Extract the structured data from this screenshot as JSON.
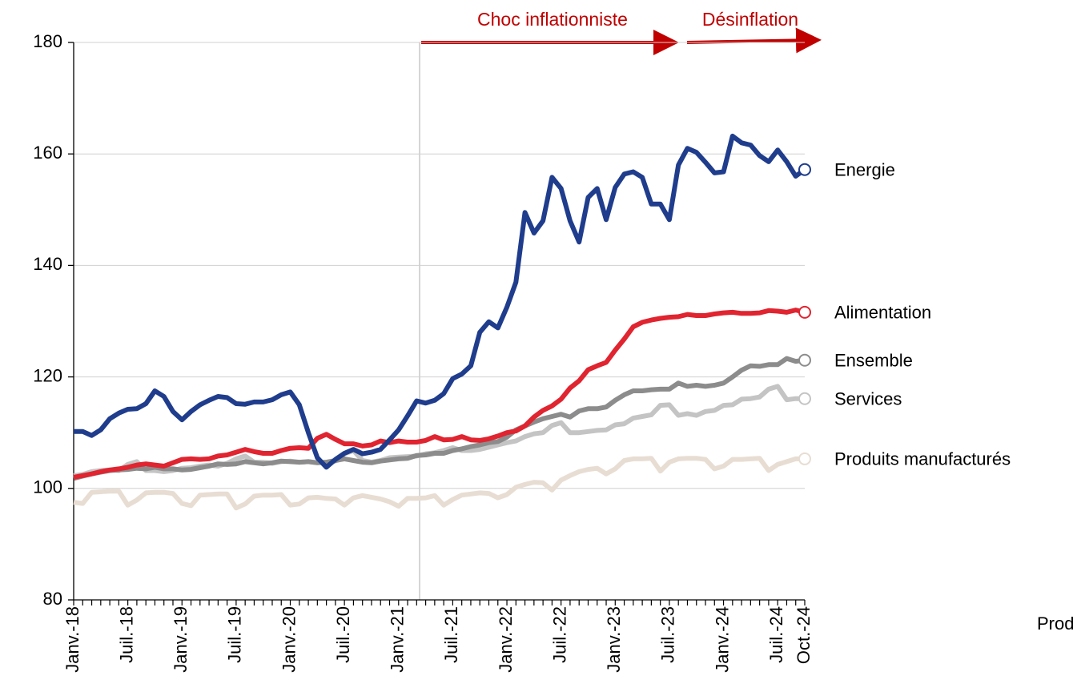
{
  "chart_data": {
    "type": "line",
    "categories": [
      "Janv.-18",
      null,
      null,
      null,
      null,
      null,
      "Juil.-18",
      null,
      null,
      null,
      null,
      null,
      "Janv.-19",
      null,
      null,
      null,
      null,
      null,
      "Juil.-19",
      null,
      null,
      null,
      null,
      null,
      "Janv.-20",
      null,
      null,
      null,
      null,
      null,
      "Juil.-20",
      null,
      null,
      null,
      null,
      null,
      "Janv.-21",
      null,
      null,
      null,
      null,
      null,
      "Juil.-21",
      null,
      null,
      null,
      null,
      null,
      "Janv.-22",
      null,
      null,
      null,
      null,
      null,
      "Juil.-22",
      null,
      null,
      null,
      null,
      null,
      "Janv.-23",
      null,
      null,
      null,
      null,
      null,
      "Juil.-23",
      null,
      null,
      null,
      null,
      null,
      "Janv.-24",
      null,
      null,
      null,
      null,
      null,
      "Juil.-24",
      null,
      null,
      "Oct.-24"
    ],
    "series": [
      {
        "name": "Energie",
        "color": "#1f3d8c",
        "values": [
          110.2,
          110.2,
          109.5,
          110.5,
          112.5,
          113.5,
          114.2,
          114.3,
          115.2,
          117.5,
          116.5,
          113.8,
          112.3,
          113.8,
          115.0,
          115.8,
          116.5,
          116.3,
          115.2,
          115.1,
          115.5,
          115.5,
          115.9,
          116.8,
          117.3,
          115.0,
          110.0,
          105.5,
          103.8,
          105.2,
          106.3,
          107.0,
          106.2,
          106.5,
          107.0,
          108.7,
          110.5,
          113.0,
          115.7,
          115.3,
          115.8,
          117.0,
          119.7,
          120.5,
          122.0,
          128.0,
          129.9,
          128.8,
          132.5,
          137.0,
          149.5,
          145.8,
          148.0,
          155.8,
          153.8,
          148.0,
          144.2,
          152.2,
          153.8,
          148.2,
          154.0,
          156.4,
          156.8,
          155.8,
          151.0,
          151.0,
          148.2,
          158.0,
          161.0,
          160.3,
          158.5,
          156.6,
          156.8,
          163.2,
          162.0,
          161.6,
          159.7,
          158.6,
          160.7,
          158.6,
          156.0,
          157.2
        ]
      },
      {
        "name": "Alimentation",
        "color": "#e02430",
        "values": [
          102.0,
          102.3,
          102.6,
          103.0,
          103.3,
          103.5,
          103.8,
          104.2,
          104.4,
          104.2,
          104.0,
          104.6,
          105.2,
          105.3,
          105.2,
          105.3,
          105.8,
          106.0,
          106.5,
          107.0,
          106.6,
          106.3,
          106.3,
          106.8,
          107.2,
          107.3,
          107.2,
          109.0,
          109.7,
          108.8,
          108.0,
          108.0,
          107.6,
          107.8,
          108.5,
          108.2,
          108.5,
          108.3,
          108.3,
          108.6,
          109.3,
          108.7,
          108.8,
          109.3,
          108.7,
          108.6,
          108.9,
          109.4,
          110.0,
          110.3,
          111.2,
          112.8,
          114.0,
          114.8,
          116.0,
          118.0,
          119.3,
          121.3,
          122.0,
          122.6,
          124.8,
          126.8,
          129.0,
          129.8,
          130.2,
          130.5,
          130.7,
          130.8,
          131.2,
          131.0,
          131.0,
          131.3,
          131.5,
          131.6,
          131.4,
          131.4,
          131.5,
          131.9,
          131.8,
          131.6,
          132.0,
          131.6
        ]
      },
      {
        "name": "Ensemble",
        "color": "#8c8c8c",
        "values": [
          101.8,
          102.2,
          102.6,
          102.9,
          103.2,
          103.3,
          103.4,
          103.6,
          103.5,
          103.8,
          103.5,
          103.5,
          103.3,
          103.4,
          103.7,
          104.0,
          104.4,
          104.3,
          104.4,
          104.8,
          104.6,
          104.4,
          104.6,
          104.9,
          104.8,
          104.7,
          104.8,
          104.6,
          104.7,
          105.0,
          105.3,
          105.0,
          104.7,
          104.6,
          104.9,
          105.1,
          105.3,
          105.4,
          105.9,
          106.0,
          106.3,
          106.3,
          106.8,
          107.1,
          107.5,
          107.8,
          108.2,
          108.4,
          109.2,
          110.5,
          111.2,
          111.9,
          112.5,
          112.9,
          113.3,
          112.8,
          113.9,
          114.3,
          114.3,
          114.6,
          115.8,
          116.8,
          117.5,
          117.5,
          117.7,
          117.8,
          117.8,
          118.9,
          118.3,
          118.5,
          118.3,
          118.5,
          118.9,
          120.0,
          121.2,
          122.0,
          121.9,
          122.2,
          122.2,
          123.3,
          122.8,
          123.0
        ]
      },
      {
        "name": "Services",
        "color": "#c4c4c4",
        "values": [
          102.3,
          102.5,
          103.0,
          103.2,
          103.3,
          103.2,
          104.3,
          104.8,
          103.2,
          103.2,
          103.0,
          103.2,
          103.6,
          103.7,
          104.0,
          104.2,
          104.0,
          104.5,
          105.3,
          105.8,
          104.7,
          104.7,
          104.5,
          104.8,
          104.9,
          104.7,
          104.8,
          104.6,
          104.7,
          104.9,
          106.2,
          106.8,
          105.0,
          104.7,
          105.0,
          105.5,
          105.6,
          105.7,
          105.8,
          106.2,
          106.4,
          106.8,
          107.3,
          106.8,
          106.8,
          107.0,
          107.4,
          107.8,
          108.2,
          108.5,
          109.3,
          109.8,
          110.0,
          111.3,
          111.8,
          110.0,
          110.0,
          110.2,
          110.4,
          110.5,
          111.4,
          111.6,
          112.6,
          112.9,
          113.2,
          114.9,
          115.0,
          113.1,
          113.4,
          113.1,
          113.8,
          114.0,
          114.9,
          115.0,
          116.0,
          116.1,
          116.4,
          117.8,
          118.3,
          115.9,
          116.1,
          116.1
        ]
      },
      {
        "name": "Produits manufacturés",
        "color": "#e8ddd3",
        "values": [
          97.5,
          97.3,
          99.3,
          99.4,
          99.5,
          99.5,
          97.0,
          97.9,
          99.2,
          99.3,
          99.3,
          99.1,
          97.3,
          96.9,
          98.8,
          98.9,
          99.0,
          99.0,
          96.5,
          97.2,
          98.6,
          98.8,
          98.8,
          98.9,
          97.0,
          97.2,
          98.3,
          98.4,
          98.2,
          98.1,
          97.0,
          98.3,
          98.7,
          98.4,
          98.1,
          97.6,
          96.8,
          98.2,
          98.2,
          98.3,
          98.7,
          97.0,
          98.0,
          98.8,
          99.0,
          99.2,
          99.1,
          98.3,
          98.9,
          100.2,
          100.7,
          101.1,
          101.0,
          99.7,
          101.5,
          102.3,
          103.0,
          103.4,
          103.6,
          102.6,
          103.5,
          105.0,
          105.3,
          105.3,
          105.4,
          103.1,
          104.7,
          105.3,
          105.4,
          105.4,
          105.2,
          103.5,
          104.0,
          105.2,
          105.2,
          105.3,
          105.4,
          103.2,
          104.3,
          104.8,
          105.3,
          105.3
        ]
      }
    ],
    "ylim": [
      80,
      180
    ],
    "yticks": [
      80,
      100,
      120,
      140,
      160,
      180
    ],
    "grid": true,
    "annotations": [
      "Choc inflationniste",
      "Désinflation"
    ],
    "stray_label": "Prod"
  }
}
